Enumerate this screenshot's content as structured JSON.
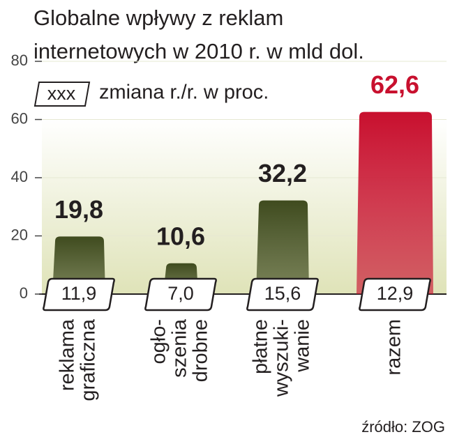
{
  "chart_data": {
    "type": "bar",
    "title": [
      "Globalne wpływy z reklam",
      "internetowych w 2010 r. w mld dol."
    ],
    "legend_box": "xxx",
    "legend_text": "zmiana r./r. w proc.",
    "source": "źródło: ZOG",
    "categories": [
      [
        "reklama",
        "graficzna"
      ],
      [
        "ogło-",
        "szenia",
        "drobne"
      ],
      [
        "płatne",
        "wyszuki-",
        "wanie"
      ],
      [
        "razem"
      ]
    ],
    "values": [
      19.8,
      10.6,
      32.2,
      62.6
    ],
    "value_labels": [
      "19,8",
      "10,6",
      "32,2",
      "62,6"
    ],
    "changes": [
      11.9,
      7.0,
      15.6,
      12.9
    ],
    "change_labels": [
      "11,9",
      "7,0",
      "15,6",
      "12,9"
    ],
    "colors": [
      "#3f4b1e",
      "#3f4b1e",
      "#3f4b1e",
      "#c8102e"
    ],
    "label_colors": [
      "#231f20",
      "#231f20",
      "#231f20",
      "#c8102e"
    ],
    "ylim": [
      0,
      80
    ],
    "yticks": [
      0,
      20,
      40,
      60,
      80
    ],
    "grid": true
  }
}
